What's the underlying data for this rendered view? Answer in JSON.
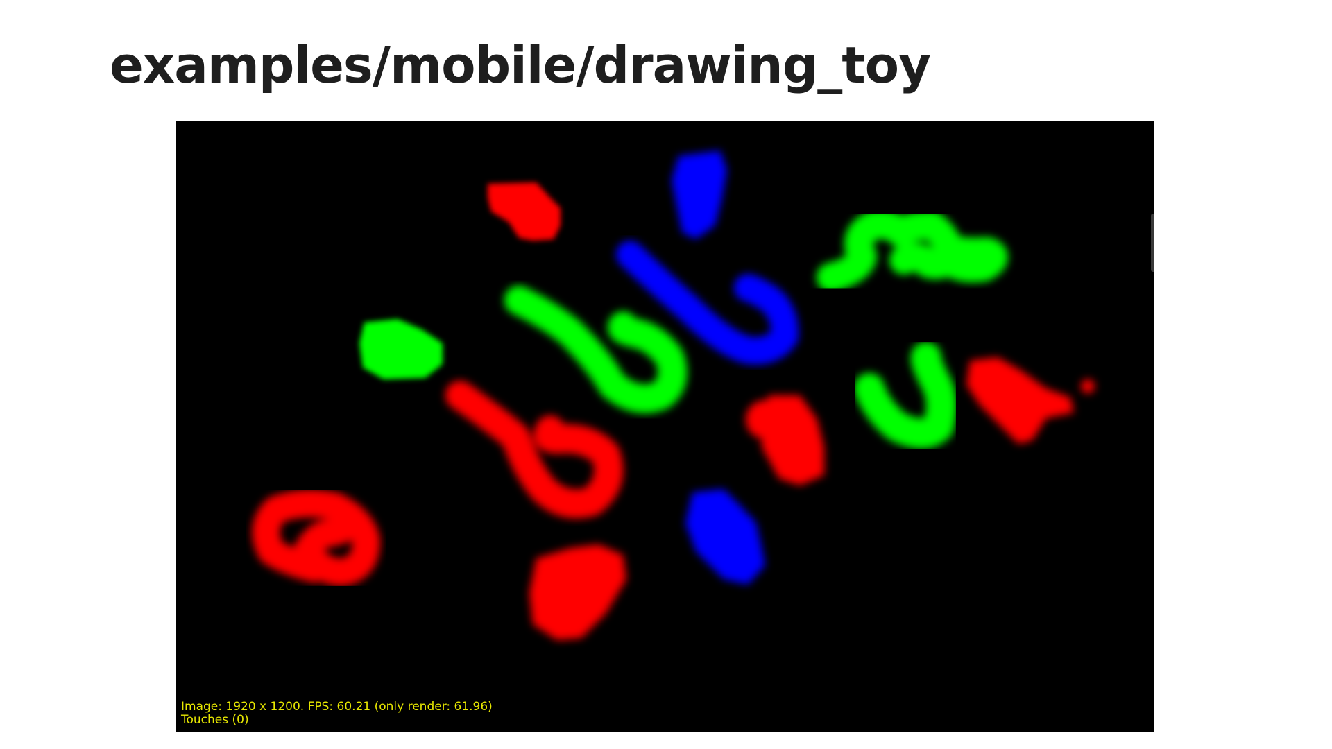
{
  "slide": {
    "title": "examples/mobile/drawing_toy"
  },
  "app": {
    "status": {
      "image_line": "Image: 1920 x 1200. FPS: 60.21 (only render: 61.96)",
      "touches_line": "Touches (0)"
    },
    "colors": {
      "background": "#000000",
      "red": "#ff0000",
      "green": "#00ff00",
      "blue": "#0000ff",
      "status_text": "#e8e800"
    },
    "strokes": [
      {
        "color": "red",
        "shape": "blob"
      },
      {
        "color": "blue",
        "shape": "blob"
      },
      {
        "color": "green",
        "shape": "squiggle"
      },
      {
        "color": "blue",
        "shape": "hook"
      },
      {
        "color": "green",
        "shape": "blob"
      },
      {
        "color": "green",
        "shape": "curl"
      },
      {
        "color": "red",
        "shape": "loop"
      },
      {
        "color": "red",
        "shape": "blob"
      },
      {
        "color": "green",
        "shape": "hook"
      },
      {
        "color": "red",
        "shape": "splat"
      },
      {
        "color": "red",
        "shape": "loop"
      },
      {
        "color": "blue",
        "shape": "blob"
      },
      {
        "color": "red",
        "shape": "blob"
      }
    ]
  }
}
